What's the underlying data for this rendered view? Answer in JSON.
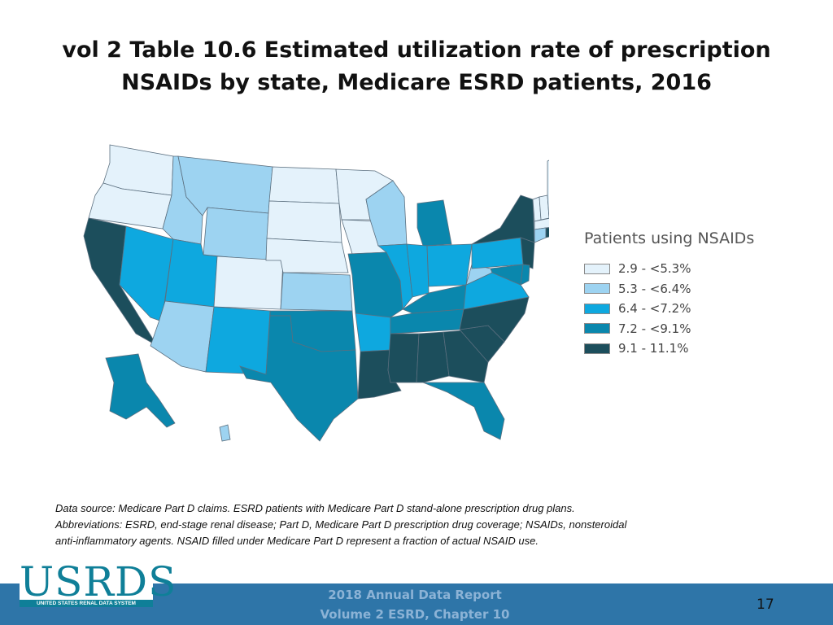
{
  "title": {
    "line1": "vol 2 Table 10.6 Estimated utilization rate of prescription",
    "line2": "NSAIDs by state, Medicare ESRD patients, 2016"
  },
  "legend": {
    "title": "Patients using NSAIDs",
    "items": [
      {
        "label": "2.9 - <5.3%",
        "color": "#e4f2fb"
      },
      {
        "label": "5.3 - <6.4%",
        "color": "#9dd3f1"
      },
      {
        "label": "6.4 - <7.2%",
        "color": "#0ea8df"
      },
      {
        "label": "7.2 - <9.1%",
        "color": "#0a87ad"
      },
      {
        "label": "9.1 - 11.1%",
        "color": "#1c4e5c"
      }
    ]
  },
  "map_data": {
    "class_1": [
      "WA",
      "OR",
      "ND",
      "MN",
      "SD",
      "NE",
      "IA",
      "CO",
      "ME",
      "VT",
      "NH",
      "MA"
    ],
    "class_2": [
      "MT",
      "ID",
      "WY",
      "WI",
      "KS",
      "AZ",
      "WV",
      "CT",
      "HI"
    ],
    "class_3": [
      "NV",
      "UT",
      "NM",
      "IL",
      "IN",
      "OH",
      "PA",
      "AR",
      "VA"
    ],
    "class_4": [
      "MO",
      "OK",
      "TX",
      "MI",
      "KY",
      "TN",
      "FL",
      "AK",
      "MD",
      "DE"
    ],
    "class_5": [
      "CA",
      "NY",
      "NJ",
      "LA",
      "MS",
      "AL",
      "GA",
      "SC",
      "NC",
      "RI"
    ]
  },
  "notes": {
    "line1": "Data source: Medicare Part D claims. ESRD patients with Medicare Part D stand-alone prescription drug plans.",
    "line2": "Abbreviations: ESRD, end-stage renal disease; Part D, Medicare Part D prescription drug coverage; NSAIDs, nonsteroidal",
    "line3": "anti-inflammatory agents. NSAID filled under Medicare Part D represent a fraction of actual NSAID use."
  },
  "logo": {
    "text": "USRDS",
    "subtitle": "UNITED STATES RENAL DATA SYSTEM"
  },
  "footer": {
    "line1": "2018 Annual Data Report",
    "line2": "Volume 2 ESRD, Chapter 10",
    "page_number": "17"
  }
}
